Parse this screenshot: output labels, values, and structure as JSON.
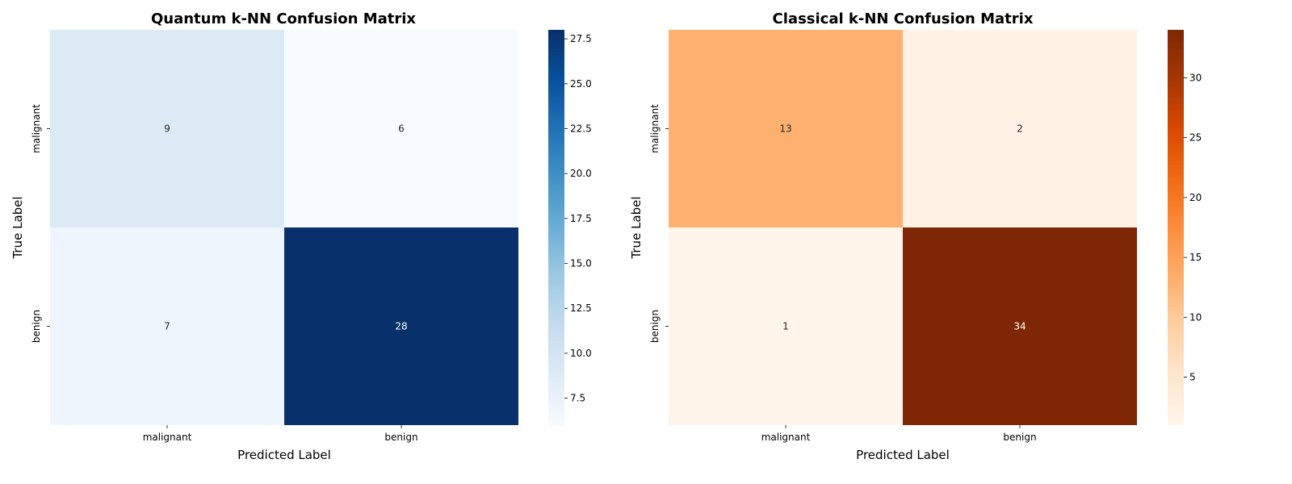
{
  "chart_data": [
    {
      "type": "heatmap",
      "title": "Quantum k-NN Confusion Matrix",
      "xlabel": "Predicted Label",
      "ylabel": "True Label",
      "x_categories": [
        "malignant",
        "benign"
      ],
      "y_categories": [
        "malignant",
        "benign"
      ],
      "values": [
        [
          9,
          6
        ],
        [
          7,
          28
        ]
      ],
      "colormap": "Blues",
      "colorbar": {
        "range": [
          6,
          28
        ],
        "ticks": [
          "7.5",
          "10.0",
          "12.5",
          "15.0",
          "17.5",
          "20.0",
          "22.5",
          "25.0",
          "27.5"
        ]
      }
    },
    {
      "type": "heatmap",
      "title": "Classical k-NN Confusion Matrix",
      "xlabel": "Predicted Label",
      "ylabel": "True Label",
      "x_categories": [
        "malignant",
        "benign"
      ],
      "y_categories": [
        "malignant",
        "benign"
      ],
      "values": [
        [
          13,
          2
        ],
        [
          1,
          34
        ]
      ],
      "colormap": "Oranges",
      "colorbar": {
        "range": [
          1,
          34
        ],
        "ticks": [
          "5",
          "10",
          "15",
          "20",
          "25",
          "30"
        ]
      }
    }
  ]
}
